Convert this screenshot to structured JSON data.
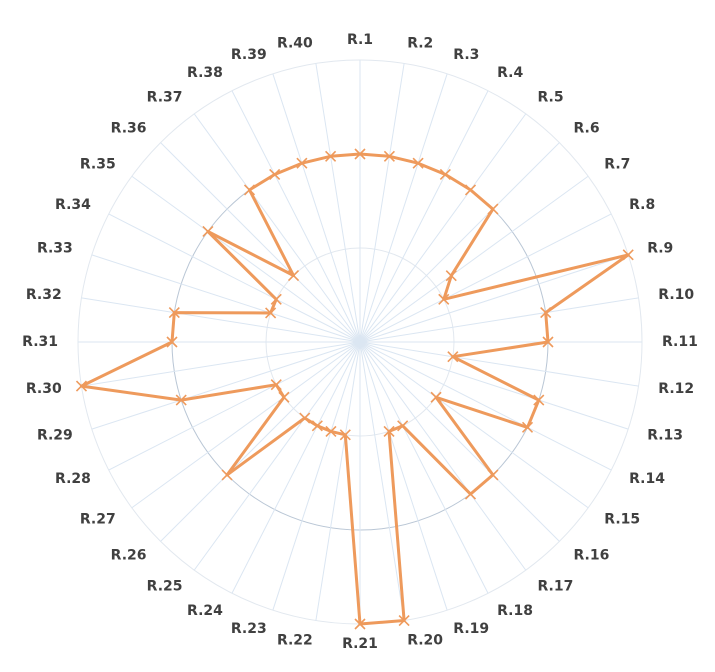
{
  "chart_data": {
    "type": "radar",
    "title": "",
    "categories": [
      "R.1",
      "R.2",
      "R.3",
      "R.4",
      "R.5",
      "R.6",
      "R.7",
      "R.8",
      "R.9",
      "R.10",
      "R.11",
      "R.12",
      "R.13",
      "R.14",
      "R.15",
      "R.16",
      "R.17",
      "R.18",
      "R.19",
      "R.20",
      "R.21",
      "R.22",
      "R.23",
      "R.24",
      "R.25",
      "R.26",
      "R.27",
      "R.28",
      "R.29",
      "R.30",
      "R.31",
      "R.32",
      "R.33",
      "R.34",
      "R.35",
      "R.36",
      "R.37",
      "R.38",
      "R.39",
      "R.40"
    ],
    "series": [
      {
        "color": "#ee9a5c",
        "values": [
          2.0,
          2.0,
          2.0,
          2.0,
          2.0,
          2.0,
          1.2,
          1.0,
          3.0,
          2.0,
          2.0,
          1.0,
          2.0,
          2.0,
          1.0,
          2.0,
          2.0,
          1.0,
          1.0,
          3.0,
          3.0,
          1.0,
          1.0,
          1.0,
          1.0,
          2.0,
          1.0,
          1.0,
          2.0,
          3.0,
          2.0,
          2.0,
          1.0,
          1.0,
          2.0,
          1.0,
          2.0,
          2.0,
          2.0,
          2.0
        ]
      }
    ],
    "rmax": 3,
    "rings": 3,
    "grid": true,
    "legend": "none"
  }
}
